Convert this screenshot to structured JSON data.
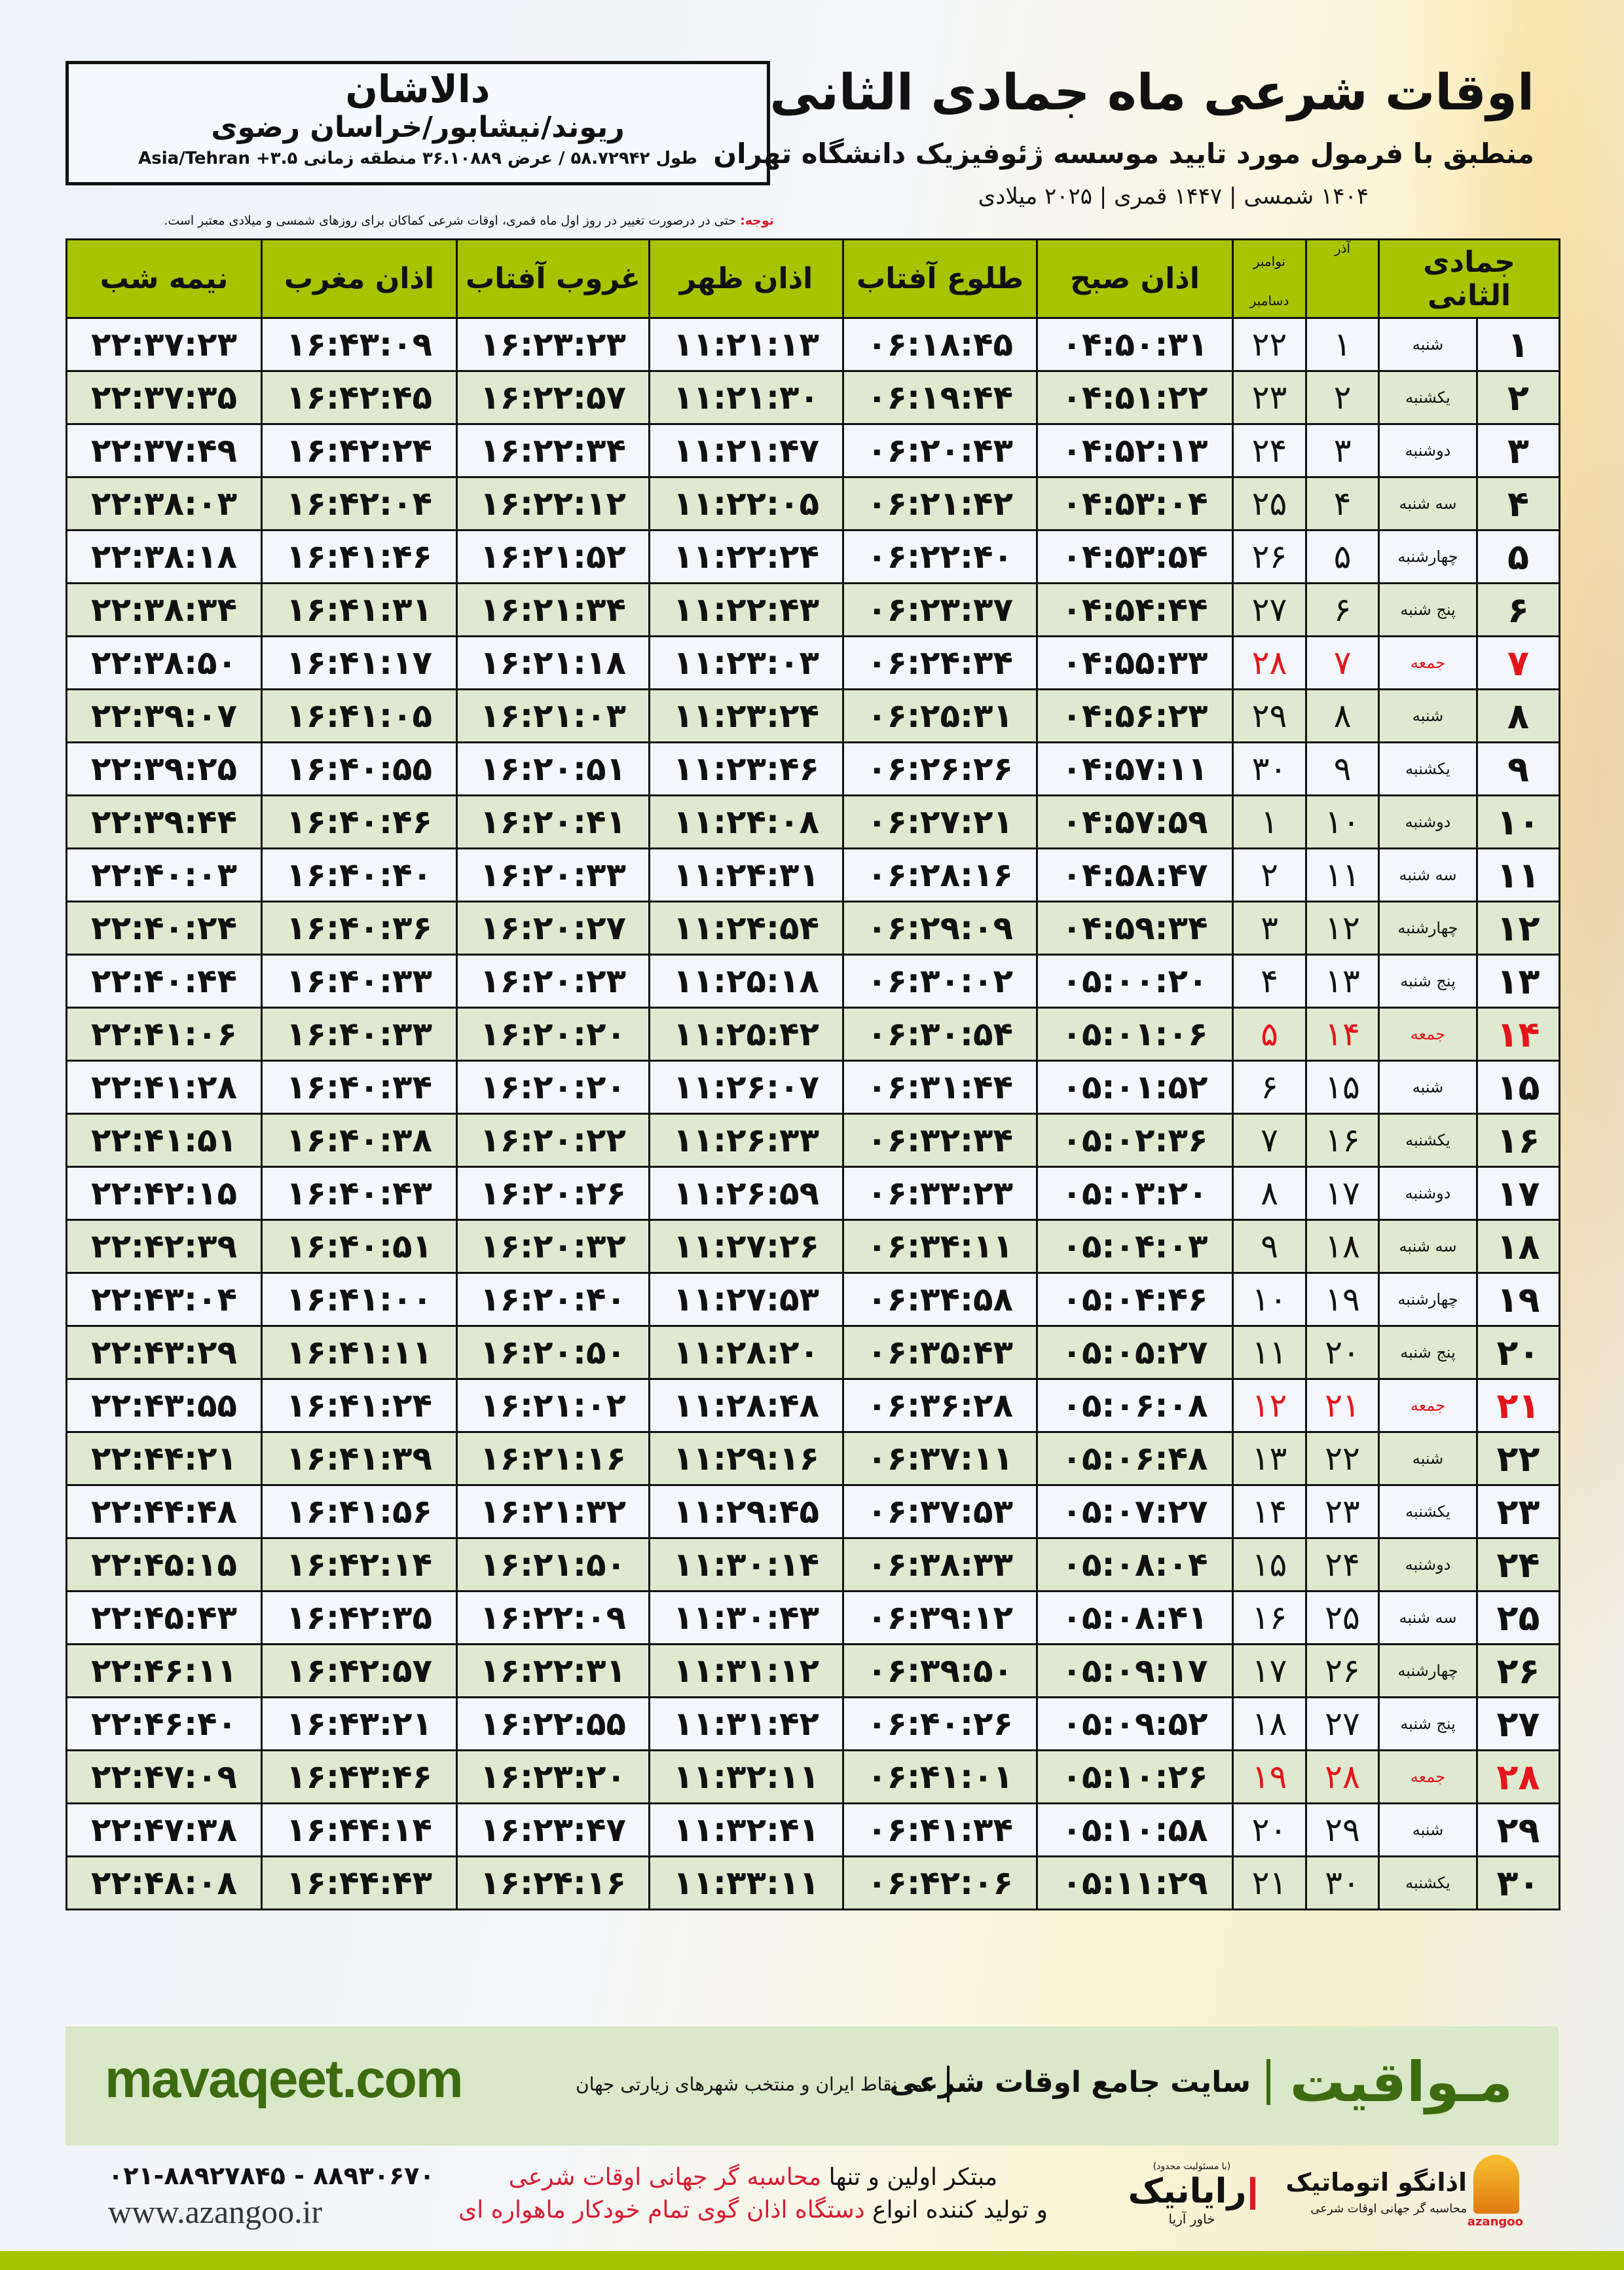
{
  "location": {
    "city": "دالاشان",
    "region": "ریوند/نیشابور/خراسان رضوی",
    "coords": "طول ۵۸.۷۲۹۴۲ / عرض ۳۶.۱۰۸۸۹ منطقه زمانی ۳.۵+ Asia/Tehran"
  },
  "header": {
    "title": "اوقات شرعی ماه جمادی الثانی",
    "subtitle": "منطبق با فرمول مورد تایید موسسه ژئوفیزیک دانشگاه تهران",
    "years": "۱۴۰۴ شمسی | ۱۴۴۷ قمری | ۲۰۲۵ میلادی"
  },
  "note": {
    "label": "توجه:",
    "text": " حتی در درصورت تغییر در روز اول ماه قمری، اوقات شرعی کماکان برای روزهای شمسی و میلادی معتبر است."
  },
  "table": {
    "headers": {
      "month": "جمادی الثانی",
      "azar": "آذر",
      "november": "نوامبر",
      "december": "دسامبر",
      "fajr": "اذان صبح",
      "sunrise": "طلوع آفتاب",
      "dhuhr": "اذان ظهر",
      "sunset": "غروب آفتاب",
      "maghrib": "اذان مغرب",
      "midnight": "نیمه شب"
    },
    "friday_color": "#e5141b",
    "header_color": "#a6c400",
    "rows": [
      [
        "۱",
        "شنبه",
        "۱",
        "۲۲",
        "۰۴:۵۰:۳۱",
        "۰۶:۱۸:۴۵",
        "۱۱:۲۱:۱۳",
        "۱۶:۲۳:۲۳",
        "۱۶:۴۳:۰۹",
        "۲۲:۳۷:۲۳"
      ],
      [
        "۲",
        "یکشنبه",
        "۲",
        "۲۳",
        "۰۴:۵۱:۲۲",
        "۰۶:۱۹:۴۴",
        "۱۱:۲۱:۳۰",
        "۱۶:۲۲:۵۷",
        "۱۶:۴۲:۴۵",
        "۲۲:۳۷:۳۵"
      ],
      [
        "۳",
        "دوشنبه",
        "۳",
        "۲۴",
        "۰۴:۵۲:۱۳",
        "۰۶:۲۰:۴۳",
        "۱۱:۲۱:۴۷",
        "۱۶:۲۲:۳۴",
        "۱۶:۴۲:۲۴",
        "۲۲:۳۷:۴۹"
      ],
      [
        "۴",
        "سه شنبه",
        "۴",
        "۲۵",
        "۰۴:۵۳:۰۴",
        "۰۶:۲۱:۴۲",
        "۱۱:۲۲:۰۵",
        "۱۶:۲۲:۱۲",
        "۱۶:۴۲:۰۴",
        "۲۲:۳۸:۰۳"
      ],
      [
        "۵",
        "چهارشنبه",
        "۵",
        "۲۶",
        "۰۴:۵۳:۵۴",
        "۰۶:۲۲:۴۰",
        "۱۱:۲۲:۲۴",
        "۱۶:۲۱:۵۲",
        "۱۶:۴۱:۴۶",
        "۲۲:۳۸:۱۸"
      ],
      [
        "۶",
        "پنج شنبه",
        "۶",
        "۲۷",
        "۰۴:۵۴:۴۴",
        "۰۶:۲۳:۳۷",
        "۱۱:۲۲:۴۳",
        "۱۶:۲۱:۳۴",
        "۱۶:۴۱:۳۱",
        "۲۲:۳۸:۳۴"
      ],
      [
        "۷",
        "جمعه",
        "۷",
        "۲۸",
        "۰۴:۵۵:۳۳",
        "۰۶:۲۴:۳۴",
        "۱۱:۲۳:۰۳",
        "۱۶:۲۱:۱۸",
        "۱۶:۴۱:۱۷",
        "۲۲:۳۸:۵۰"
      ],
      [
        "۸",
        "شنبه",
        "۸",
        "۲۹",
        "۰۴:۵۶:۲۳",
        "۰۶:۲۵:۳۱",
        "۱۱:۲۳:۲۴",
        "۱۶:۲۱:۰۳",
        "۱۶:۴۱:۰۵",
        "۲۲:۳۹:۰۷"
      ],
      [
        "۹",
        "یکشنبه",
        "۹",
        "۳۰",
        "۰۴:۵۷:۱۱",
        "۰۶:۲۶:۲۶",
        "۱۱:۲۳:۴۶",
        "۱۶:۲۰:۵۱",
        "۱۶:۴۰:۵۵",
        "۲۲:۳۹:۲۵"
      ],
      [
        "۱۰",
        "دوشنبه",
        "۱۰",
        "۱",
        "۰۴:۵۷:۵۹",
        "۰۶:۲۷:۲۱",
        "۱۱:۲۴:۰۸",
        "۱۶:۲۰:۴۱",
        "۱۶:۴۰:۴۶",
        "۲۲:۳۹:۴۴"
      ],
      [
        "۱۱",
        "سه شنبه",
        "۱۱",
        "۲",
        "۰۴:۵۸:۴۷",
        "۰۶:۲۸:۱۶",
        "۱۱:۲۴:۳۱",
        "۱۶:۲۰:۳۳",
        "۱۶:۴۰:۴۰",
        "۲۲:۴۰:۰۳"
      ],
      [
        "۱۲",
        "چهارشنبه",
        "۱۲",
        "۳",
        "۰۴:۵۹:۳۴",
        "۰۶:۲۹:۰۹",
        "۱۱:۲۴:۵۴",
        "۱۶:۲۰:۲۷",
        "۱۶:۴۰:۳۶",
        "۲۲:۴۰:۲۴"
      ],
      [
        "۱۳",
        "پنج شنبه",
        "۱۳",
        "۴",
        "۰۵:۰۰:۲۰",
        "۰۶:۳۰:۰۲",
        "۱۱:۲۵:۱۸",
        "۱۶:۲۰:۲۳",
        "۱۶:۴۰:۳۳",
        "۲۲:۴۰:۴۴"
      ],
      [
        "۱۴",
        "جمعه",
        "۱۴",
        "۵",
        "۰۵:۰۱:۰۶",
        "۰۶:۳۰:۵۴",
        "۱۱:۲۵:۴۲",
        "۱۶:۲۰:۲۰",
        "۱۶:۴۰:۳۳",
        "۲۲:۴۱:۰۶"
      ],
      [
        "۱۵",
        "شنبه",
        "۱۵",
        "۶",
        "۰۵:۰۱:۵۲",
        "۰۶:۳۱:۴۴",
        "۱۱:۲۶:۰۷",
        "۱۶:۲۰:۲۰",
        "۱۶:۴۰:۳۴",
        "۲۲:۴۱:۲۸"
      ],
      [
        "۱۶",
        "یکشنبه",
        "۱۶",
        "۷",
        "۰۵:۰۲:۳۶",
        "۰۶:۳۲:۳۴",
        "۱۱:۲۶:۳۳",
        "۱۶:۲۰:۲۲",
        "۱۶:۴۰:۳۸",
        "۲۲:۴۱:۵۱"
      ],
      [
        "۱۷",
        "دوشنبه",
        "۱۷",
        "۸",
        "۰۵:۰۳:۲۰",
        "۰۶:۳۳:۲۳",
        "۱۱:۲۶:۵۹",
        "۱۶:۲۰:۲۶",
        "۱۶:۴۰:۴۳",
        "۲۲:۴۲:۱۵"
      ],
      [
        "۱۸",
        "سه شنبه",
        "۱۸",
        "۹",
        "۰۵:۰۴:۰۳",
        "۰۶:۳۴:۱۱",
        "۱۱:۲۷:۲۶",
        "۱۶:۲۰:۳۲",
        "۱۶:۴۰:۵۱",
        "۲۲:۴۲:۳۹"
      ],
      [
        "۱۹",
        "چهارشنبه",
        "۱۹",
        "۱۰",
        "۰۵:۰۴:۴۶",
        "۰۶:۳۴:۵۸",
        "۱۱:۲۷:۵۳",
        "۱۶:۲۰:۴۰",
        "۱۶:۴۱:۰۰",
        "۲۲:۴۳:۰۴"
      ],
      [
        "۲۰",
        "پنج شنبه",
        "۲۰",
        "۱۱",
        "۰۵:۰۵:۲۷",
        "۰۶:۳۵:۴۳",
        "۱۱:۲۸:۲۰",
        "۱۶:۲۰:۵۰",
        "۱۶:۴۱:۱۱",
        "۲۲:۴۳:۲۹"
      ],
      [
        "۲۱",
        "جمعه",
        "۲۱",
        "۱۲",
        "۰۵:۰۶:۰۸",
        "۰۶:۳۶:۲۸",
        "۱۱:۲۸:۴۸",
        "۱۶:۲۱:۰۲",
        "۱۶:۴۱:۲۴",
        "۲۲:۴۳:۵۵"
      ],
      [
        "۲۲",
        "شنبه",
        "۲۲",
        "۱۳",
        "۰۵:۰۶:۴۸",
        "۰۶:۳۷:۱۱",
        "۱۱:۲۹:۱۶",
        "۱۶:۲۱:۱۶",
        "۱۶:۴۱:۳۹",
        "۲۲:۴۴:۲۱"
      ],
      [
        "۲۳",
        "یکشنبه",
        "۲۳",
        "۱۴",
        "۰۵:۰۷:۲۷",
        "۰۶:۳۷:۵۳",
        "۱۱:۲۹:۴۵",
        "۱۶:۲۱:۳۲",
        "۱۶:۴۱:۵۶",
        "۲۲:۴۴:۴۸"
      ],
      [
        "۲۴",
        "دوشنبه",
        "۲۴",
        "۱۵",
        "۰۵:۰۸:۰۴",
        "۰۶:۳۸:۳۳",
        "۱۱:۳۰:۱۴",
        "۱۶:۲۱:۵۰",
        "۱۶:۴۲:۱۴",
        "۲۲:۴۵:۱۵"
      ],
      [
        "۲۵",
        "سه شنبه",
        "۲۵",
        "۱۶",
        "۰۵:۰۸:۴۱",
        "۰۶:۳۹:۱۲",
        "۱۱:۳۰:۴۳",
        "۱۶:۲۲:۰۹",
        "۱۶:۴۲:۳۵",
        "۲۲:۴۵:۴۳"
      ],
      [
        "۲۶",
        "چهارشنبه",
        "۲۶",
        "۱۷",
        "۰۵:۰۹:۱۷",
        "۰۶:۳۹:۵۰",
        "۱۱:۳۱:۱۲",
        "۱۶:۲۲:۳۱",
        "۱۶:۴۲:۵۷",
        "۲۲:۴۶:۱۱"
      ],
      [
        "۲۷",
        "پنج شنبه",
        "۲۷",
        "۱۸",
        "۰۵:۰۹:۵۲",
        "۰۶:۴۰:۲۶",
        "۱۱:۳۱:۴۲",
        "۱۶:۲۲:۵۵",
        "۱۶:۴۳:۲۱",
        "۲۲:۴۶:۴۰"
      ],
      [
        "۲۸",
        "جمعه",
        "۲۸",
        "۱۹",
        "۰۵:۱۰:۲۶",
        "۰۶:۴۱:۰۱",
        "۱۱:۳۲:۱۱",
        "۱۶:۲۳:۲۰",
        "۱۶:۴۳:۴۶",
        "۲۲:۴۷:۰۹"
      ],
      [
        "۲۹",
        "شنبه",
        "۲۹",
        "۲۰",
        "۰۵:۱۰:۵۸",
        "۰۶:۴۱:۳۴",
        "۱۱:۳۲:۴۱",
        "۱۶:۲۳:۴۷",
        "۱۶:۴۴:۱۴",
        "۲۲:۴۷:۳۸"
      ],
      [
        "۳۰",
        "یکشنبه",
        "۳۰",
        "۲۱",
        "۰۵:۱۱:۲۹",
        "۰۶:۴۲:۰۶",
        "۱۱:۳۳:۱۱",
        "۱۶:۲۴:۱۶",
        "۱۶:۴۴:۴۳",
        "۲۲:۴۸:۰۸"
      ]
    ]
  },
  "promo": {
    "brand": "مـواقیت",
    "site": "سایت جامع اوقات شرعی",
    "coverage": "همه نقاط ایران و منتخب شهرهای زیارتی جهان",
    "url": "mavaqeet.com"
  },
  "footer": {
    "phone": "۰۲۱-۸۸۹۲۷۸۴۵ - ۸۸۹۳۰۶۷۰",
    "web": "www.azangoo.ir",
    "line1_a": "مبتکر اولین و تنها ",
    "line1_b": "محاسبه گر جهانی اوقات شرعی",
    "line2_a": "و تولید کننده انواع ",
    "line2_b": "دستگاه اذان گوی تمام خودکار ماهواره ای",
    "rayanik_limited": "(با مسئولیت محدود)",
    "rayanik_name": "رایانیک",
    "rayanik_sub": "خاور آریا",
    "azangoo_name": "اذانگو اتوماتیک",
    "azangoo_sub": "محاسبه گر جهانی اوقات شرعی",
    "azangoo_latin": "azangoo"
  }
}
